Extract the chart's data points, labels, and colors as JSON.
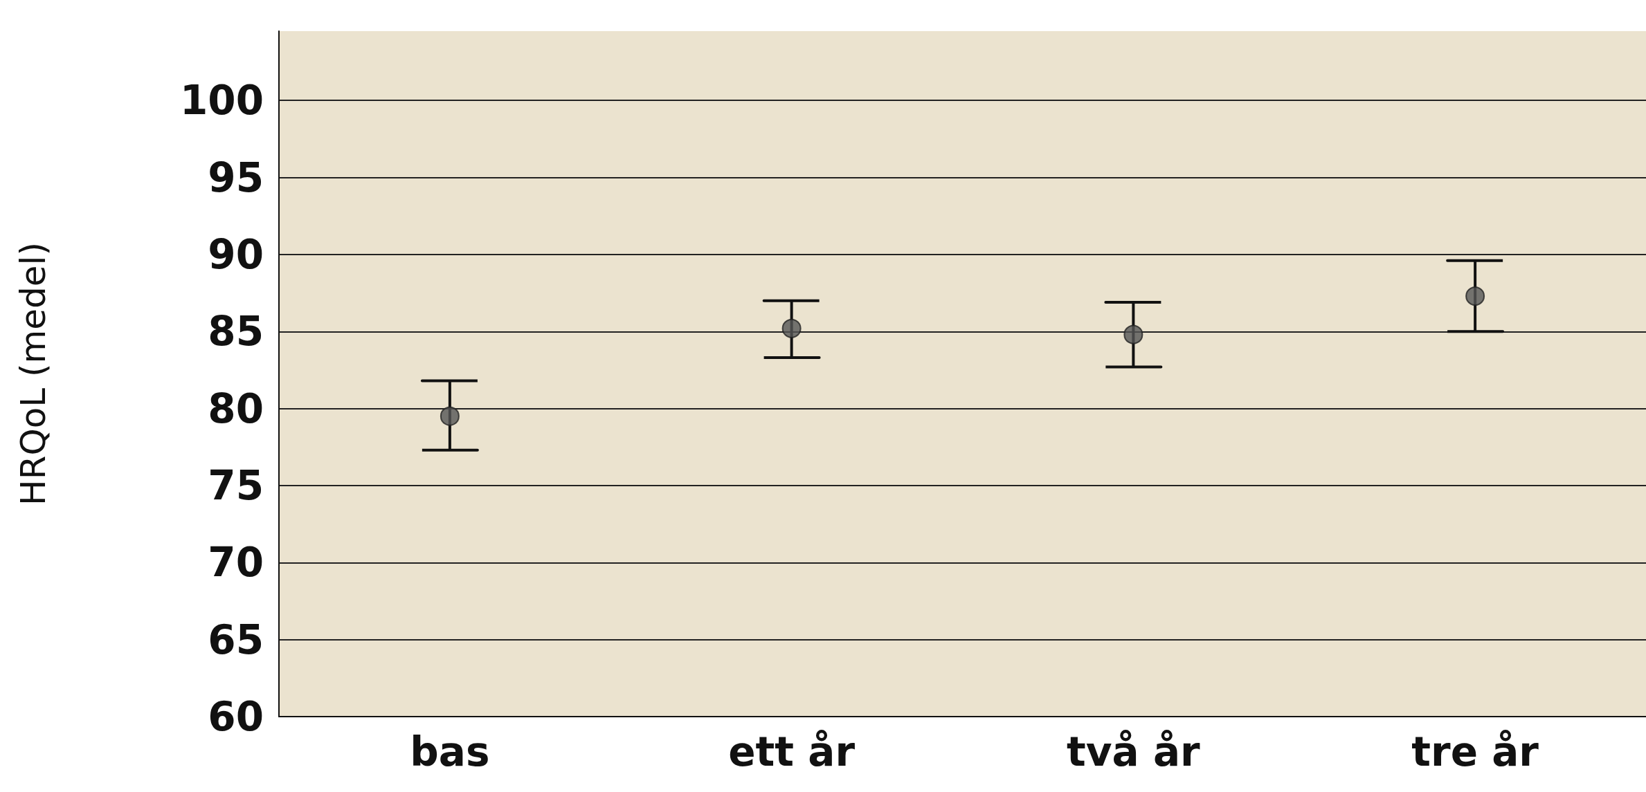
{
  "chart_data": {
    "type": "scatter",
    "ylabel": "HRQoL (medel)",
    "categories": [
      "bas",
      "ett år",
      "två år",
      "tre år"
    ],
    "values": [
      79.5,
      85.2,
      84.8,
      87.3
    ],
    "errors": [
      [
        77.3,
        81.8
      ],
      [
        83.3,
        87.0
      ],
      [
        82.7,
        86.9
      ],
      [
        85.0,
        89.6
      ]
    ],
    "color": "#555555",
    "marker": "circle",
    "grid": "y",
    "ylim": [
      60,
      104.5
    ],
    "yticks": [
      60,
      65,
      70,
      75,
      80,
      85,
      90,
      95,
      100
    ]
  }
}
